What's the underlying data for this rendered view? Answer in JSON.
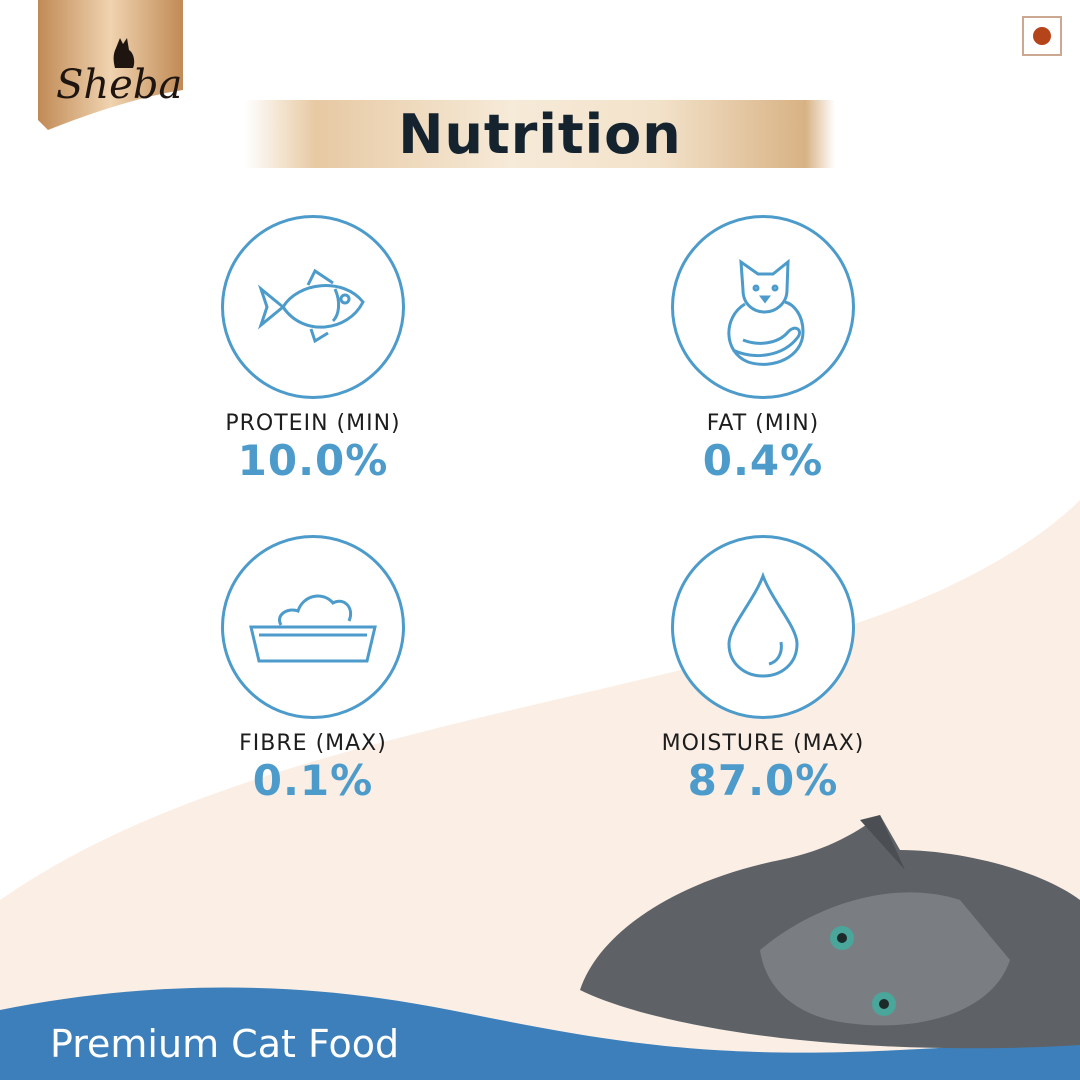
{
  "brand": {
    "logo_text": "Sheba",
    "color": "#c9975e"
  },
  "flag_icon": "veg-mark-icon",
  "title": "Nutrition",
  "nutrients": [
    {
      "icon": "fish-icon",
      "label": "PROTEIN (MIN)",
      "value": "10.0%"
    },
    {
      "icon": "cat-icon",
      "label": "FAT (MIN)",
      "value": "0.4%"
    },
    {
      "icon": "food-bowl-icon",
      "label": "FIBRE (MAX)",
      "value": "0.1%"
    },
    {
      "icon": "water-drop-icon",
      "label": "MOISTURE (MAX)",
      "value": "87.0%"
    }
  ],
  "tagline": "Premium Cat Food",
  "colors": {
    "accent": "#4c9bcb",
    "footer": "#3d7fba",
    "cream": "#fbefe5"
  }
}
